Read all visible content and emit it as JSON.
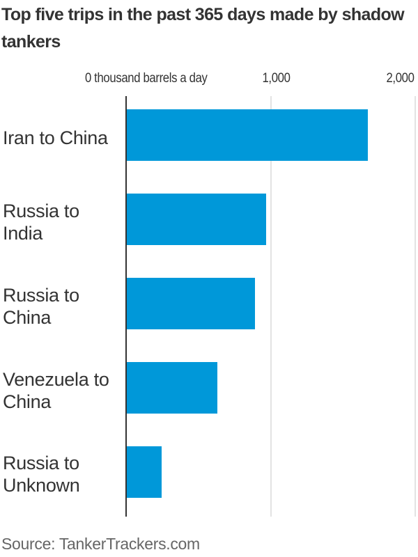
{
  "chart_data": {
    "type": "bar",
    "orientation": "horizontal",
    "title": "Top five trips in the past 365 days made by shadow tankers",
    "xlabel": "thousand barrels a day",
    "ylabel": "",
    "xlim": [
      0,
      2000
    ],
    "x_ticks": [
      0,
      1000,
      2000
    ],
    "x_tick_labels": [
      "0 thousand barrels a day",
      "1,000",
      "2,000"
    ],
    "grid": true,
    "legend": null,
    "categories": [
      "Iran to China",
      "Russia to India",
      "Russia to China",
      "Venezuela to China",
      "Russia to Unknown"
    ],
    "values": [
      1667,
      964,
      887,
      626,
      241
    ],
    "bar_color": "#0098d9",
    "source": "Source: TankerTrackers.com"
  },
  "header": {
    "title": "Top five trips in the past 365 days made by shadow tankers"
  },
  "axis": {
    "tick_0": "0 thousand barrels a day",
    "tick_1000": "1,000",
    "tick_2000": "2,000"
  },
  "bars": [
    {
      "label_line1": "Iran to China",
      "label_line2": ""
    },
    {
      "label_line1": "Russia to",
      "label_line2": "India"
    },
    {
      "label_line1": "Russia to",
      "label_line2": "China"
    },
    {
      "label_line1": "Venezuela to",
      "label_line2": "China"
    },
    {
      "label_line1": "Russia to",
      "label_line2": "Unknown"
    }
  ],
  "footer": {
    "source": "Source: TankerTrackers.com"
  }
}
